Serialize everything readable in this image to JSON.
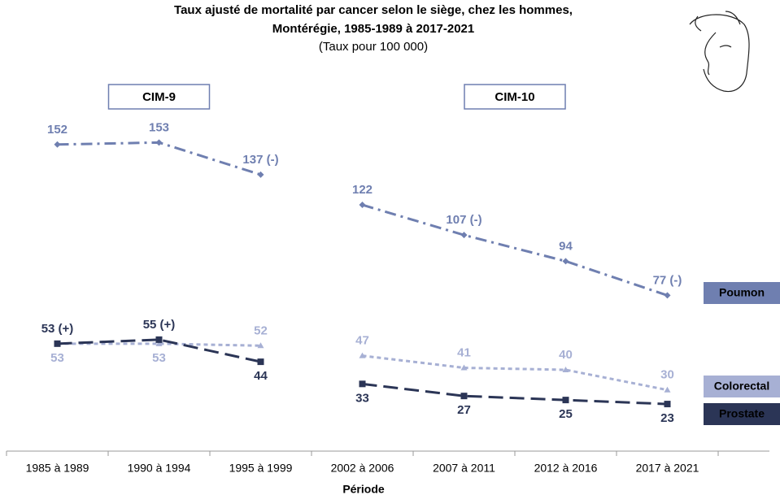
{
  "chart_data": {
    "type": "line",
    "title": "Taux ajusté de mortalité par cancer selon le siège, chez les hommes,",
    "title_line2": "Montérégie, 1985-1989 à 2017-2021",
    "subtitle": "(Taux pour 100 000)",
    "x_label": "Période",
    "categories": [
      "1985 à 1989",
      "1990 à 1994",
      "1995 à 1999",
      "2002 à 2006",
      "2007 à 2011",
      "2012 à 2016",
      "2017 à 2021"
    ],
    "groups": [
      {
        "label": "CIM-9",
        "categories": [
          0,
          1,
          2
        ]
      },
      {
        "label": "CIM-10",
        "categories": [
          3,
          4,
          5,
          6
        ]
      }
    ],
    "ylim": [
      0,
      160
    ],
    "series": [
      {
        "name": "Poumon",
        "color": "#6f7fb0",
        "values": [
          152,
          153,
          137,
          122,
          107,
          94,
          77
        ],
        "value_labels": [
          "152",
          "153",
          "137 (-)",
          "122",
          "107 (-)",
          "94",
          "77 (-)"
        ]
      },
      {
        "name": "Colorectal",
        "color": "#a7b0d4",
        "values": [
          53,
          53,
          52,
          47,
          41,
          40,
          30
        ],
        "value_labels": [
          "53",
          "53",
          "52",
          "47",
          "41",
          "40",
          "30"
        ]
      },
      {
        "name": "Prostate",
        "color": "#2b3556",
        "values": [
          53,
          55,
          44,
          33,
          27,
          25,
          23
        ],
        "value_labels": [
          "53 (+)",
          "55 (+)",
          "44",
          "33",
          "27",
          "25",
          "23"
        ]
      }
    ]
  }
}
